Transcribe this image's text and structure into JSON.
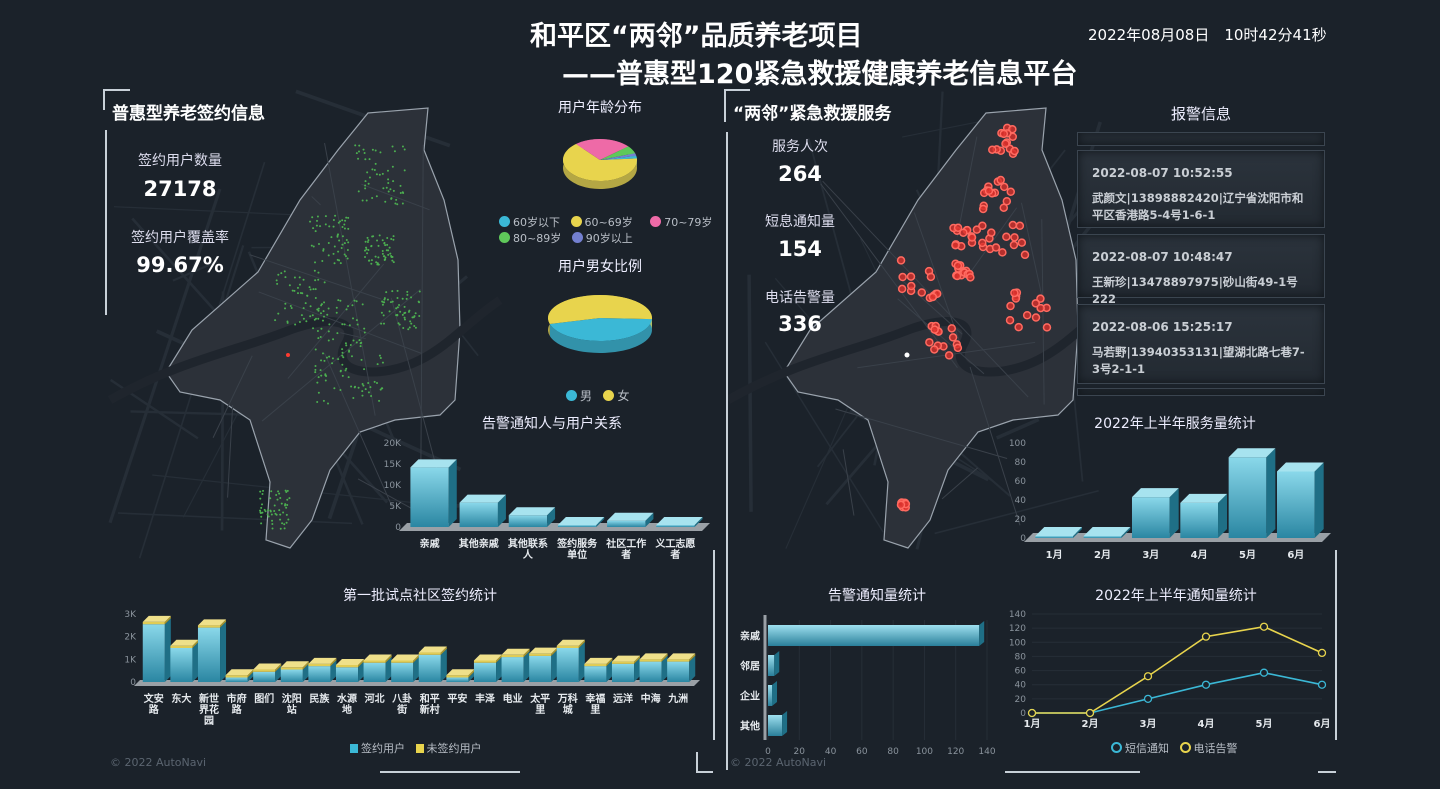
{
  "header": {
    "title_line1": "和平区“两邻”品质养老项目",
    "title_line2": "——普惠型120紧急救援健康养老信息平台",
    "datetime": "2022年08月08日　10时42分41秒"
  },
  "left": {
    "section_title": "普惠型养老签约信息",
    "stats": [
      {
        "label": "签约用户数量",
        "value": "27178"
      },
      {
        "label": "签约用户覆盖率",
        "value": "99.67%"
      }
    ],
    "watermark": "© 2022 AutoNavi"
  },
  "right": {
    "section_title": "“两邻”紧急救援服务",
    "stats": [
      {
        "label": "服务人次",
        "value": "264"
      },
      {
        "label": "短息通知量",
        "value": "154"
      },
      {
        "label": "电话告警量",
        "value": "336"
      }
    ],
    "watermark": "© 2022 AutoNavi"
  },
  "alarms": {
    "title": "报警信息",
    "items": [
      {
        "time": "2022-08-07 10:52:55",
        "text": "武颜文|13898882420|辽宁省沈阳市和平区香港路5-4号1-6-1"
      },
      {
        "time": "2022-08-07 10:48:47",
        "text": "王新珍|13478897975|砂山街49-1号222"
      },
      {
        "time": "2022-08-06 15:25:17",
        "text": "马若野|13940353131|望湖北路七巷7-3号2-1-1"
      }
    ]
  },
  "colors": {
    "accent": "#3bb8d6",
    "yellow": "#e8d44d",
    "pink": "#ee6aa7",
    "green": "#5fc85a",
    "purple": "#7480d0",
    "map_dot_green": "#4caf50",
    "map_dot_red": "#ff3b30"
  },
  "chart_data": [
    {
      "id": "age",
      "type": "pie",
      "title": "用户年龄分布",
      "categories": [
        "60岁以下",
        "60~69岁",
        "70~79岁",
        "80~89岁",
        "90岁以上"
      ],
      "values": [
        2,
        65,
        25,
        6,
        2
      ],
      "colors": [
        "#3bb8d6",
        "#e8d44d",
        "#ee6aa7",
        "#5fc85a",
        "#7480d0"
      ],
      "legend": "bottom"
    },
    {
      "id": "gender",
      "type": "pie",
      "title": "用户男女比例",
      "categories": [
        "男",
        "女"
      ],
      "values": [
        45,
        55
      ],
      "colors": [
        "#3bb8d6",
        "#e8d44d"
      ],
      "legend": "bottom"
    },
    {
      "id": "relation",
      "type": "bar",
      "title": "告警通知人与用户关系",
      "categories": [
        "亲戚",
        "其他亲戚",
        "其他联系人",
        "签约服务单位",
        "社区工作者",
        "义工志愿者"
      ],
      "values": [
        14200,
        5800,
        2800,
        100,
        1500,
        100
      ],
      "ylim": [
        0,
        20000
      ],
      "yticks": [
        "0",
        "5K",
        "10K",
        "15K",
        "20K"
      ]
    },
    {
      "id": "community",
      "type": "bar",
      "title": "第一批试点社区签约统计",
      "categories": [
        "文安路",
        "东大",
        "新世界花园",
        "市府路",
        "图们",
        "沈阳站",
        "民族",
        "水源地",
        "河北",
        "八卦街",
        "和平新村",
        "平安",
        "丰泽",
        "电业",
        "太平里",
        "万科城",
        "幸福里",
        "远洋",
        "中海",
        "九洲"
      ],
      "series": [
        {
          "name": "签约用户",
          "values": [
            2550,
            1500,
            2400,
            200,
            450,
            550,
            700,
            650,
            850,
            850,
            1200,
            200,
            850,
            1100,
            1150,
            1500,
            700,
            800,
            900,
            900
          ]
        },
        {
          "name": "未签约用户",
          "values": [
            100,
            100,
            100,
            100,
            100,
            100,
            100,
            100,
            100,
            100,
            100,
            100,
            100,
            100,
            100,
            100,
            100,
            100,
            100,
            100
          ]
        }
      ],
      "ylim": [
        0,
        3000
      ],
      "yticks": [
        "0",
        "1K",
        "2K",
        "3K"
      ],
      "legend": "bottom"
    },
    {
      "id": "service",
      "type": "bar",
      "title": "2022年上半年服务量统计",
      "categories": [
        "1月",
        "2月",
        "3月",
        "4月",
        "5月",
        "6月"
      ],
      "values": [
        0,
        0,
        43,
        37,
        85,
        70
      ],
      "ylim": [
        0,
        100
      ],
      "yticks": [
        "0",
        "20",
        "40",
        "60",
        "80",
        "100"
      ]
    },
    {
      "id": "notify",
      "type": "bar",
      "orientation": "horizontal",
      "title": "告警通知量统计",
      "categories": [
        "亲戚",
        "邻居",
        "企业",
        "其他"
      ],
      "values": [
        135,
        4,
        2,
        9
      ],
      "xlim": [
        0,
        140
      ],
      "xticks": [
        "0",
        "20",
        "40",
        "60",
        "80",
        "100",
        "120",
        "140"
      ]
    },
    {
      "id": "trend",
      "type": "line",
      "title": "2022年上半年通知量统计",
      "categories": [
        "1月",
        "2月",
        "3月",
        "4月",
        "5月",
        "6月"
      ],
      "series": [
        {
          "name": "短信通知",
          "values": [
            0,
            0,
            20,
            40,
            57,
            40
          ],
          "color": "#3bb8d6"
        },
        {
          "name": "电话告警",
          "values": [
            0,
            0,
            52,
            108,
            122,
            85
          ],
          "color": "#e8d44d"
        }
      ],
      "ylim": [
        0,
        140
      ],
      "yticks": [
        "0",
        "20",
        "40",
        "60",
        "80",
        "100",
        "120",
        "140"
      ],
      "legend": "bottom"
    }
  ]
}
